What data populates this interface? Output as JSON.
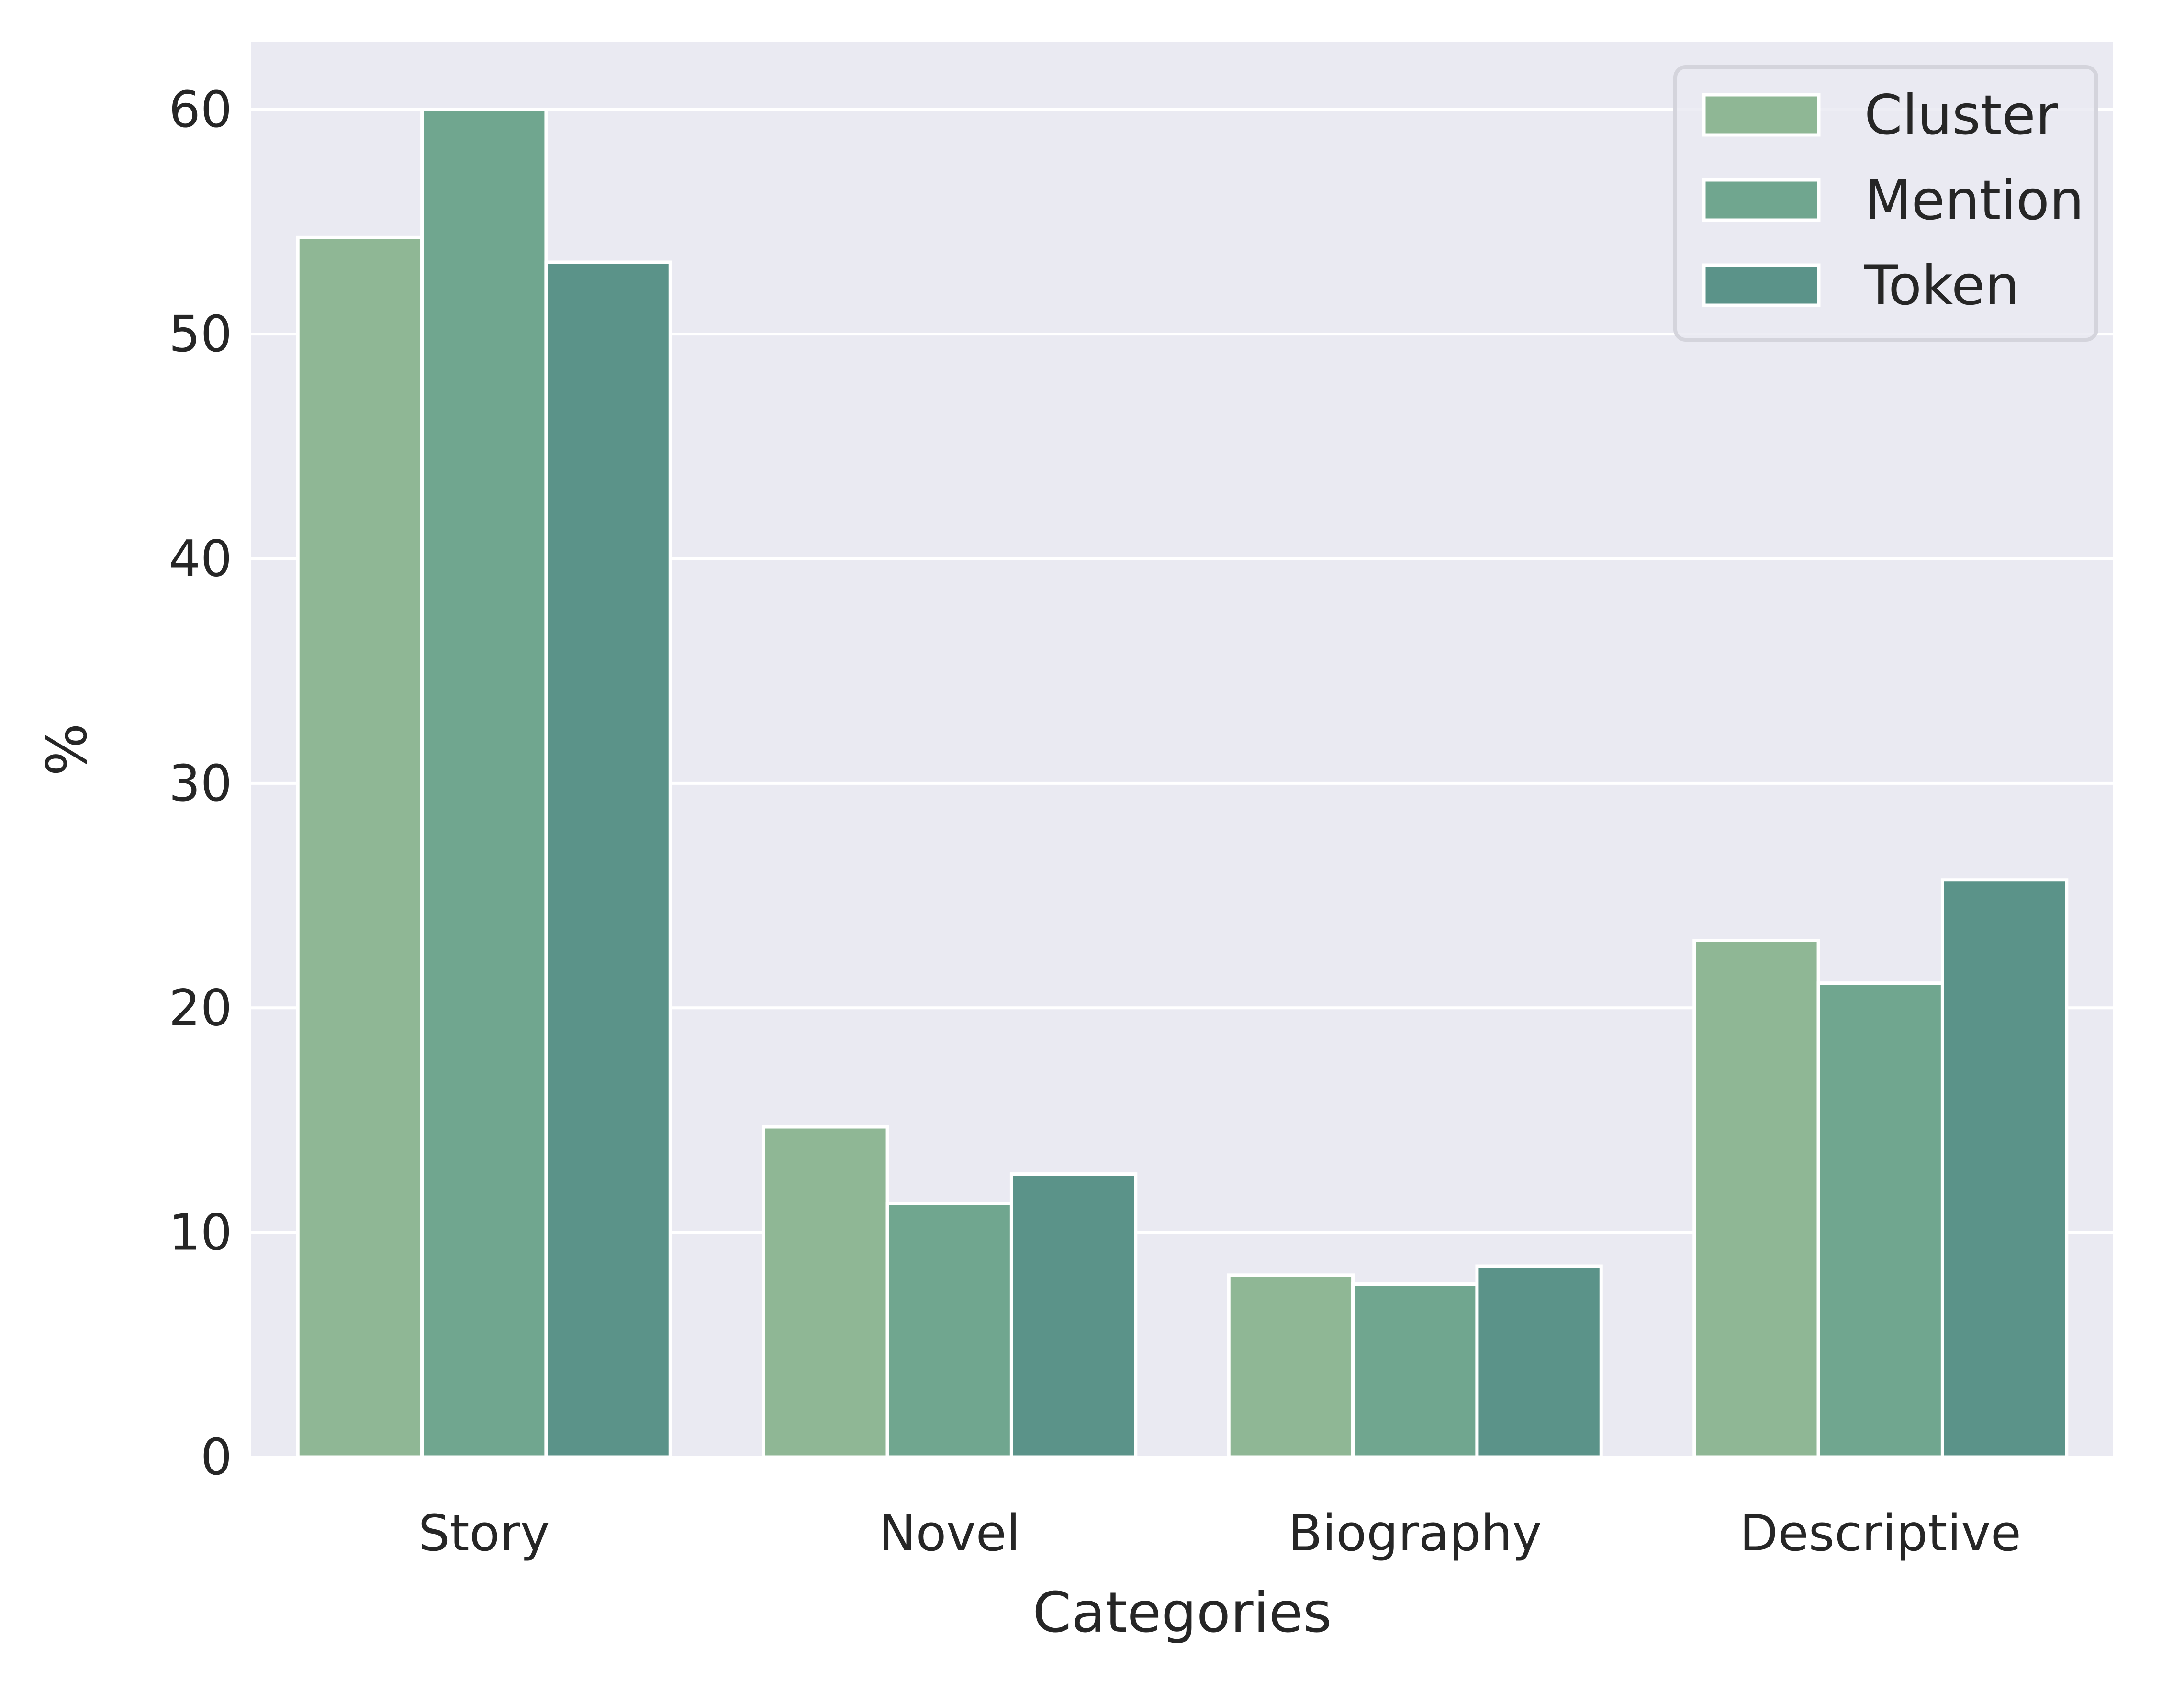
{
  "chart_data": {
    "type": "bar",
    "title": "",
    "xlabel": "Categories",
    "ylabel": "%",
    "categories": [
      "Story",
      "Novel",
      "Biography",
      "Descriptive"
    ],
    "series": [
      {
        "name": "Cluster",
        "values": [
          54.3,
          14.7,
          8.1,
          23.0
        ],
        "color": "#8fb795"
      },
      {
        "name": "Mention",
        "values": [
          60.0,
          11.3,
          7.7,
          21.1
        ],
        "color": "#70a68f"
      },
      {
        "name": "Token",
        "values": [
          53.2,
          12.6,
          8.5,
          25.7
        ],
        "color": "#5b9389"
      }
    ],
    "ylim": [
      0,
      63
    ],
    "yticks": [
      0,
      10,
      20,
      30,
      40,
      50,
      60
    ],
    "grid": true,
    "legend_position": "top-right",
    "background_color": "#eaeaf2",
    "grid_color": "#ffffff"
  }
}
